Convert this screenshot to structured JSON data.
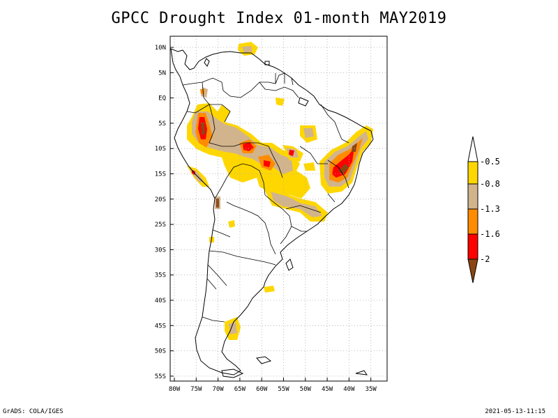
{
  "title": "GPCC Drought Index 01-month MAY2019",
  "footer": {
    "left": "GrADS: COLA/IGES",
    "right": "2021-05-13-11:15"
  },
  "map": {
    "lat_ticks": [
      "10N",
      "5N",
      "EQ",
      "5S",
      "10S",
      "15S",
      "20S",
      "25S",
      "30S",
      "35S",
      "40S",
      "45S",
      "50S",
      "55S"
    ],
    "lon_ticks": [
      "80W",
      "75W",
      "70W",
      "65W",
      "60W",
      "55W",
      "50W",
      "45W",
      "40W",
      "35W"
    ]
  },
  "legend": {
    "labels": [
      "-0.5",
      "-0.8",
      "-1.3",
      "-1.6",
      "-2"
    ],
    "colors": {
      "yellow": "#FFD700",
      "tan": "#D2B48C",
      "orange": "#FF8C00",
      "red": "#FF0000",
      "brown": "#8B4513",
      "white": "#FFFFFF"
    }
  }
}
